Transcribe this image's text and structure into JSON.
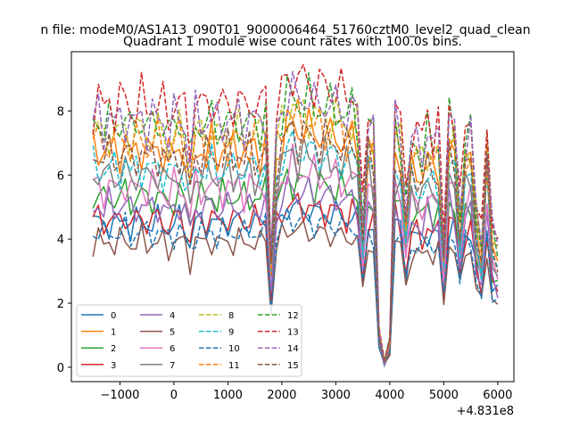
{
  "chart_data": {
    "type": "line",
    "suptitle": "n file: modeM0/AS1A13_090T01_9000006464_51760cztM0_level2_quad_clean",
    "title": "Quadrant 1 module wise count rates with 100.0s bins.",
    "xlabel": "",
    "ylabel": "",
    "x_offset_label": "+4.831e8",
    "xlim": [
      -1900,
      6300
    ],
    "ylim": [
      -0.45,
      9.85
    ],
    "xticks": [
      -1000,
      0,
      1000,
      2000,
      3000,
      4000,
      5000,
      6000
    ],
    "xtick_labels": [
      "−1000",
      "0",
      "1000",
      "2000",
      "3000",
      "4000",
      "5000",
      "6000"
    ],
    "yticks": [
      0,
      2,
      4,
      6,
      8
    ],
    "ytick_labels": [
      "0",
      "2",
      "4",
      "6",
      "8"
    ],
    "legend_position": "lower-left",
    "legend_columns": 4,
    "x": [
      -1500,
      -1400,
      -1300,
      -1200,
      -1100,
      -1000,
      -900,
      -800,
      -700,
      -600,
      -500,
      -400,
      -300,
      -200,
      -100,
      0,
      100,
      200,
      300,
      400,
      500,
      600,
      700,
      800,
      900,
      1000,
      1100,
      1200,
      1300,
      1400,
      1500,
      1600,
      1700,
      1800,
      1900,
      2000,
      2100,
      2200,
      2300,
      2400,
      2500,
      2600,
      2700,
      2800,
      2900,
      3000,
      3100,
      3200,
      3300,
      3400,
      3500,
      3600,
      3700,
      3800,
      3900,
      4000,
      4100,
      4200,
      4300,
      4400,
      4500,
      4600,
      4700,
      4800,
      4900,
      5000,
      5100,
      5200,
      5300,
      5400,
      5500,
      5600,
      5700,
      5800,
      5900,
      6000
    ],
    "shape": [
      1.0,
      1.02,
      0.98,
      1.01,
      0.99,
      1.0,
      1.03,
      0.97,
      1.0,
      1.02,
      0.98,
      1.0,
      1.01,
      0.99,
      0.95,
      1.0,
      1.02,
      0.97,
      0.85,
      1.01,
      1.0,
      0.99,
      1.02,
      0.98,
      1.0,
      1.01,
      0.99,
      1.02,
      0.98,
      1.01,
      1.0,
      0.99,
      1.03,
      0.45,
      0.95,
      1.05,
      1.1,
      1.12,
      1.08,
      1.1,
      1.09,
      1.07,
      1.06,
      1.08,
      1.05,
      1.07,
      1.04,
      1.03,
      1.05,
      1.02,
      0.6,
      1.0,
      0.95,
      0.15,
      0.02,
      0.12,
      1.0,
      0.95,
      0.65,
      0.92,
      0.9,
      0.88,
      0.95,
      0.9,
      0.92,
      0.5,
      1.0,
      0.97,
      0.62,
      0.93,
      0.95,
      0.65,
      0.5,
      0.95,
      0.55,
      0.5
    ],
    "series": [
      {
        "name": "0",
        "color": "#1f77b4",
        "style": "solid",
        "level": 4.5
      },
      {
        "name": "1",
        "color": "#ff7f0e",
        "style": "solid",
        "level": 6.8
      },
      {
        "name": "2",
        "color": "#2ca02c",
        "style": "solid",
        "level": 5.3
      },
      {
        "name": "3",
        "color": "#d62728",
        "style": "solid",
        "level": 4.6
      },
      {
        "name": "4",
        "color": "#9467bd",
        "style": "solid",
        "level": 5.0
      },
      {
        "name": "5",
        "color": "#8c564b",
        "style": "solid",
        "level": 3.9
      },
      {
        "name": "6",
        "color": "#e377c2",
        "style": "solid",
        "level": 5.6
      },
      {
        "name": "7",
        "color": "#7f7f7f",
        "style": "solid",
        "level": 6.0
      },
      {
        "name": "8",
        "color": "#bcbd22",
        "style": "dashed",
        "level": 7.3
      },
      {
        "name": "9",
        "color": "#17becf",
        "style": "dashed",
        "level": 6.2
      },
      {
        "name": "10",
        "color": "#1f77b4",
        "style": "dashed",
        "level": 4.2
      },
      {
        "name": "11",
        "color": "#ff7f0e",
        "style": "dashed",
        "level": 7.0
      },
      {
        "name": "12",
        "color": "#2ca02c",
        "style": "dashed",
        "level": 7.6
      },
      {
        "name": "13",
        "color": "#d62728",
        "style": "dashed",
        "level": 8.2
      },
      {
        "name": "14",
        "color": "#9467bd",
        "style": "dashed",
        "level": 7.7
      },
      {
        "name": "15",
        "color": "#8c564b",
        "style": "dashed",
        "level": 6.6
      }
    ]
  }
}
